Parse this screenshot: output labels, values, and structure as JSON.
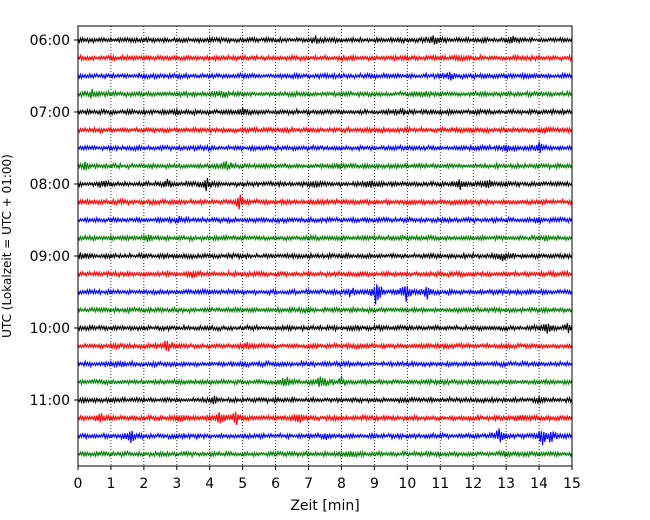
{
  "chart_data": {
    "type": "line",
    "title": "",
    "xlabel": "Zeit  [min]",
    "ylabel": "UTC (Lokalzeit = UTC + 01:00)",
    "xlim": [
      0,
      15
    ],
    "x_ticks": [
      "0",
      "1",
      "2",
      "3",
      "4",
      "5",
      "6",
      "7",
      "8",
      "9",
      "10",
      "11",
      "12",
      "13",
      "14",
      "15"
    ],
    "y_ticks": [
      "06:00",
      "07:00",
      "08:00",
      "09:00",
      "10:00",
      "11:00"
    ],
    "grid": "vertical-dotted",
    "trace_colors": [
      "#000000",
      "#ff0000",
      "#0000ff",
      "#008000"
    ],
    "traces": [
      {
        "start": "06:00",
        "color": "#000000",
        "events": [
          [
            7.2,
            0.25
          ],
          [
            10.8,
            0.3
          ],
          [
            13.2,
            0.25
          ]
        ]
      },
      {
        "start": "06:15",
        "color": "#ff0000",
        "events": [
          [
            11.6,
            0.2
          ]
        ]
      },
      {
        "start": "06:30",
        "color": "#0000ff",
        "events": [
          [
            11.3,
            0.3
          ]
        ]
      },
      {
        "start": "06:45",
        "color": "#008000",
        "events": [
          [
            0.4,
            0.3
          ],
          [
            4.4,
            0.2
          ],
          [
            10.4,
            0.2
          ]
        ]
      },
      {
        "start": "07:00",
        "color": "#000000",
        "events": [
          [
            3.0,
            0.2
          ],
          [
            5.0,
            0.2
          ],
          [
            9.8,
            0.2
          ]
        ]
      },
      {
        "start": "07:15",
        "color": "#ff0000",
        "events": [
          [
            14.2,
            0.2
          ]
        ]
      },
      {
        "start": "07:30",
        "color": "#0000ff",
        "events": [
          [
            14.0,
            0.3
          ],
          [
            13.0,
            0.2
          ]
        ]
      },
      {
        "start": "07:45",
        "color": "#008000",
        "events": [
          [
            0.2,
            0.35
          ],
          [
            4.5,
            0.3
          ],
          [
            8.0,
            0.2
          ]
        ]
      },
      {
        "start": "08:00",
        "color": "#000000",
        "events": [
          [
            0.8,
            0.35
          ],
          [
            2.7,
            0.35
          ],
          [
            3.9,
            0.5
          ],
          [
            7.2,
            0.35
          ],
          [
            8.9,
            0.35
          ],
          [
            11.6,
            0.4
          ],
          [
            12.4,
            0.3
          ]
        ]
      },
      {
        "start": "08:15",
        "color": "#ff0000",
        "events": [
          [
            4.9,
            0.55
          ]
        ]
      },
      {
        "start": "08:30",
        "color": "#0000ff",
        "events": [
          [
            3.0,
            0.2
          ],
          [
            14.0,
            0.2
          ]
        ]
      },
      {
        "start": "08:45",
        "color": "#008000",
        "events": [
          [
            2.1,
            0.2
          ],
          [
            14.2,
            0.2
          ]
        ]
      },
      {
        "start": "09:00",
        "color": "#000000",
        "events": [
          [
            12.9,
            0.3
          ],
          [
            0.1,
            0.2
          ]
        ]
      },
      {
        "start": "09:15",
        "color": "#ff0000",
        "events": [
          [
            3.5,
            0.2
          ]
        ]
      },
      {
        "start": "09:30",
        "color": "#0000ff",
        "events": [
          [
            8.3,
            0.3
          ],
          [
            9.05,
            1.0
          ],
          [
            9.95,
            0.8
          ],
          [
            10.6,
            0.5
          ]
        ]
      },
      {
        "start": "09:45",
        "color": "#008000",
        "events": [
          [
            7.0,
            0.15
          ]
        ]
      },
      {
        "start": "10:00",
        "color": "#000000",
        "events": [
          [
            14.2,
            0.5
          ],
          [
            14.9,
            0.4
          ]
        ]
      },
      {
        "start": "10:15",
        "color": "#ff0000",
        "events": [
          [
            2.7,
            0.4
          ],
          [
            5.1,
            0.2
          ]
        ]
      },
      {
        "start": "10:30",
        "color": "#0000ff",
        "events": [
          [
            1.3,
            0.15
          ]
        ]
      },
      {
        "start": "10:45",
        "color": "#008000",
        "events": [
          [
            6.3,
            0.35
          ],
          [
            7.4,
            0.55
          ],
          [
            8.0,
            0.3
          ]
        ]
      },
      {
        "start": "11:00",
        "color": "#000000",
        "events": [
          [
            4.1,
            0.25
          ],
          [
            14.0,
            0.25
          ]
        ]
      },
      {
        "start": "11:15",
        "color": "#ff0000",
        "events": [
          [
            0.7,
            0.3
          ],
          [
            3.1,
            0.3
          ],
          [
            4.3,
            0.4
          ],
          [
            4.8,
            0.5
          ],
          [
            6.7,
            0.3
          ],
          [
            13.4,
            0.25
          ]
        ]
      },
      {
        "start": "11:30",
        "color": "#0000ff",
        "events": [
          [
            1.6,
            0.5
          ],
          [
            7.5,
            0.2
          ],
          [
            12.8,
            0.5
          ],
          [
            14.1,
            0.6
          ],
          [
            14.4,
            0.5
          ]
        ]
      },
      {
        "start": "11:45",
        "color": "#008000",
        "events": [
          [
            8.3,
            0.3
          ],
          [
            13.0,
            0.2
          ]
        ]
      }
    ]
  }
}
